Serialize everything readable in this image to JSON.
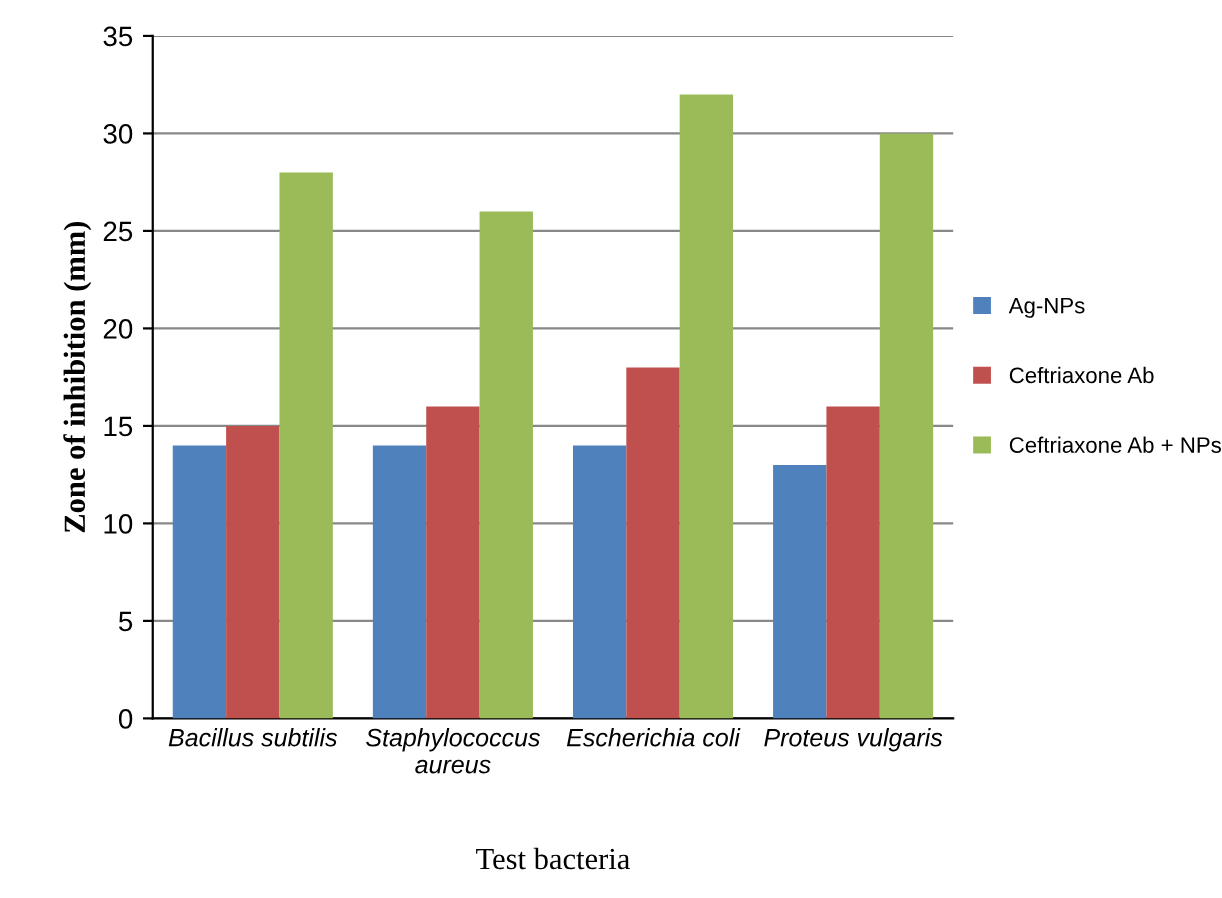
{
  "chart_data": {
    "type": "bar",
    "xlabel": "Test bacteria",
    "ylabel": "Zone of inhibition (mm)",
    "categories": [
      "Bacillus subtilis",
      "Staphylococcus\naureus",
      "Escherichia coli",
      "Proteus vulgaris"
    ],
    "series": [
      {
        "name": "Ag-NPs",
        "color": "#4f81bd",
        "values": [
          14,
          14,
          14,
          13
        ]
      },
      {
        "name": "Ceftriaxone Ab",
        "color": "#c0504d",
        "values": [
          15,
          16,
          18,
          16
        ]
      },
      {
        "name": "Ceftriaxone Ab + NPs",
        "color": "#9bbb59",
        "values": [
          28,
          26,
          32,
          30
        ]
      }
    ],
    "ylim": [
      0,
      35
    ],
    "yticks": [
      0,
      5,
      10,
      15,
      20,
      25,
      30,
      35
    ],
    "grid": "y",
    "legend": "right"
  }
}
